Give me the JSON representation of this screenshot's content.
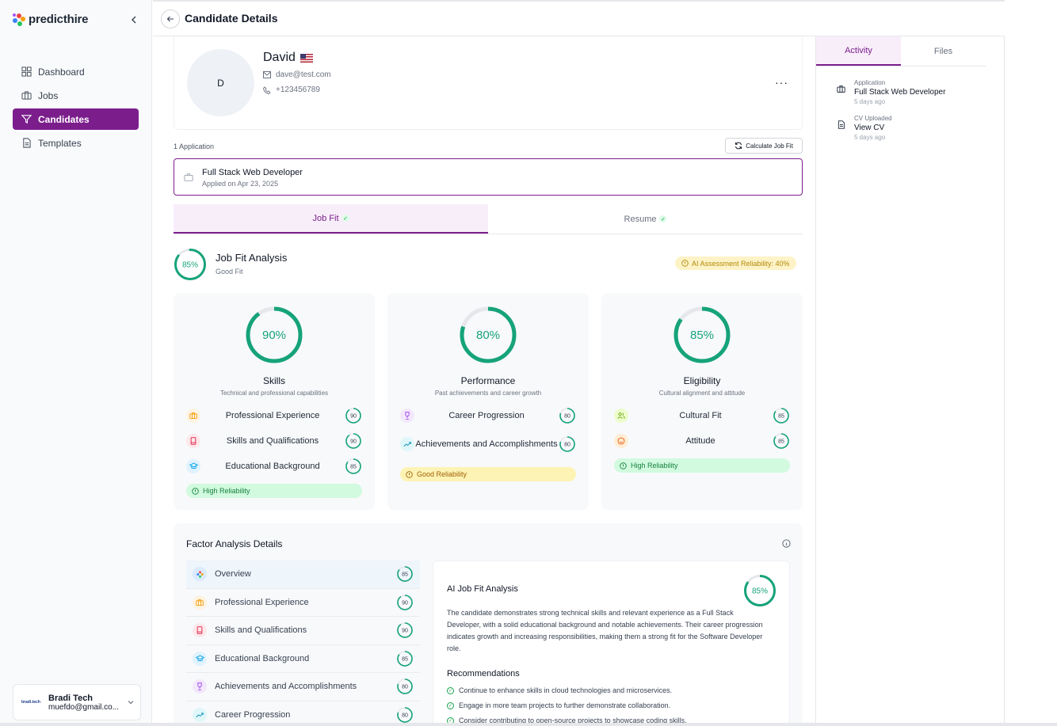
{
  "brand": {
    "name": "predicthire"
  },
  "nav": [
    {
      "id": "dashboard",
      "label": "Dashboard",
      "icon": "grid-icon"
    },
    {
      "id": "jobs",
      "label": "Jobs",
      "icon": "briefcase-icon"
    },
    {
      "id": "candidates",
      "label": "Candidates",
      "icon": "filter-icon",
      "active": true
    },
    {
      "id": "templates",
      "label": "Templates",
      "icon": "document-icon"
    }
  ],
  "user": {
    "org_logo": "bradi.tech",
    "name": "Bradi Tech",
    "email": "muefdo@gmail.co..."
  },
  "header": {
    "title": "Candidate Details"
  },
  "candidate": {
    "initial": "D",
    "name": "David",
    "flag": "us-flag",
    "email": "dave@test.com",
    "phone": "+123456789",
    "more": "···"
  },
  "applications": {
    "count_label": "1 Application",
    "calc_button": "Calculate Job Fit",
    "items": [
      {
        "title": "Full Stack Web Developer",
        "applied": "Applied on Apr 23, 2025"
      }
    ]
  },
  "tabs": [
    {
      "label": "Job Fit",
      "active": true
    },
    {
      "label": "Resume",
      "active": false
    }
  ],
  "job_fit": {
    "score": 85,
    "score_label": "85%",
    "title": "Job Fit Analysis",
    "subtitle": "Good Fit",
    "reliability": "AI Assessment Reliability: 40%"
  },
  "categories": [
    {
      "score": 90,
      "score_label": "90%",
      "title": "Skills",
      "desc": "Technical and professional capabilities",
      "factors": [
        {
          "label": "Professional Experience",
          "score": 90,
          "icon": "briefcase-icon"
        },
        {
          "label": "Skills and Qualifications",
          "score": 90,
          "icon": "book-icon"
        },
        {
          "label": "Educational Background",
          "score": 85,
          "icon": "graduation-cap-icon"
        }
      ],
      "reliability": "High Reliability",
      "reliability_level": "high"
    },
    {
      "score": 80,
      "score_label": "80%",
      "title": "Performance",
      "desc": "Past achievements and career growth",
      "factors": [
        {
          "label": "Career Progression",
          "score": 80,
          "icon": "trophy-icon"
        },
        {
          "label": "Achievements and Accomplishments",
          "score": 80,
          "icon": "trending-up-icon"
        }
      ],
      "reliability": "Good Reliability",
      "reliability_level": "good"
    },
    {
      "score": 85,
      "score_label": "85%",
      "title": "Eligibility",
      "desc": "Cultural alignment and attitude",
      "factors": [
        {
          "label": "Cultural Fit",
          "score": 85,
          "icon": "users-icon"
        },
        {
          "label": "Attitude",
          "score": 85,
          "icon": "smile-icon"
        }
      ],
      "reliability": "High Reliability",
      "reliability_level": "high"
    }
  ],
  "factor_analysis": {
    "title": "Factor Analysis Details",
    "items": [
      {
        "label": "Overview",
        "score": 85,
        "icon": "overview-icon",
        "active": true
      },
      {
        "label": "Professional Experience",
        "score": 90,
        "icon": "briefcase-icon"
      },
      {
        "label": "Skills and Qualifications",
        "score": 90,
        "icon": "book-icon"
      },
      {
        "label": "Educational Background",
        "score": 85,
        "icon": "graduation-cap-icon"
      },
      {
        "label": "Achievements and Accomplishments",
        "score": 80,
        "icon": "trophy-icon"
      },
      {
        "label": "Career Progression",
        "score": 80,
        "icon": "trending-up-icon"
      }
    ],
    "panel": {
      "title": "AI Job Fit Analysis",
      "score": 85,
      "score_label": "85%",
      "text": "The candidate demonstrates strong technical skills and relevant experience as a Full Stack Developer, with a solid educational background and notable achievements. Their career progression indicates growth and increasing responsibilities, making them a strong fit for the Software Developer role.",
      "recommendations_title": "Recommendations",
      "recommendations": [
        "Continue to enhance skills in cloud technologies and microservices.",
        "Engage in more team projects to further demonstrate collaboration.",
        "Consider contributing to open-source projects to showcase coding skills."
      ]
    }
  },
  "activity": {
    "tabs": [
      {
        "label": "Activity",
        "active": true
      },
      {
        "label": "Files",
        "active": false
      }
    ],
    "items": [
      {
        "kind": "Application",
        "title": "Full Stack Web Developer",
        "time": "5 days ago",
        "icon": "briefcase-icon"
      },
      {
        "kind": "CV Uploaded",
        "title": "View CV",
        "time": "5 days ago",
        "icon": "document-icon"
      }
    ]
  },
  "colors": {
    "brand": "#7b1e8c",
    "accent_green": "#16a37a",
    "ring_track": "#e5e7eb"
  }
}
